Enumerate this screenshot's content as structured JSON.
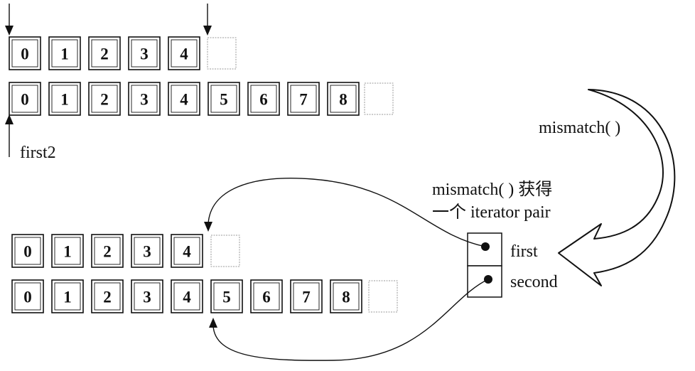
{
  "sequences": {
    "first_range": [
      "0",
      "1",
      "2",
      "3",
      "4"
    ],
    "second_range": [
      "0",
      "1",
      "2",
      "3",
      "4",
      "5",
      "6",
      "7",
      "8"
    ]
  },
  "labels": {
    "first2": "first2",
    "mismatch_call": "mismatch( )",
    "result_line1": "mismatch( ) 获得",
    "result_line2": "一个 iterator pair",
    "pair_first": "first",
    "pair_second": "second"
  }
}
